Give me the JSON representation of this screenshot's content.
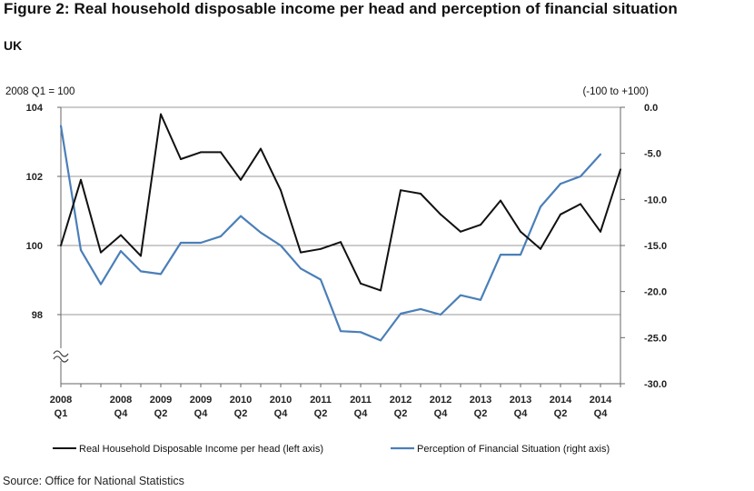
{
  "figure": {
    "title": "Figure 2: Real household disposable income per head and perception of financial situation",
    "subtitle": "UK",
    "source": "Source: Office for National Statistics"
  },
  "colors": {
    "income_line": "#111111",
    "perception_line": "#4a7fb8",
    "gridline": "#9a9a9a"
  },
  "chart_data": {
    "type": "line",
    "left_axis": {
      "unit_label": "2008 Q1 = 100",
      "ylim": [
        96,
        104
      ],
      "ticks": [
        98,
        100,
        102,
        104
      ],
      "tick_labels": [
        "98",
        "100",
        "102",
        "104"
      ],
      "break_mark": true
    },
    "right_axis": {
      "unit_label": "(-100 to +100)",
      "ylim": [
        -30,
        0
      ],
      "ticks": [
        0,
        -5,
        -10,
        -15,
        -20,
        -25,
        -30
      ],
      "tick_labels": [
        "0.0",
        "-5.0",
        "-10.0",
        "-15.0",
        "-20.0",
        "-25.0",
        "-30.0"
      ]
    },
    "x_labels": [
      [
        "2008",
        "Q1"
      ],
      [
        "2008",
        "Q4"
      ],
      [
        "2009",
        "Q2"
      ],
      [
        "2009",
        "Q4"
      ],
      [
        "2010",
        "Q2"
      ],
      [
        "2010",
        "Q4"
      ],
      [
        "2011",
        "Q2"
      ],
      [
        "2011",
        "Q4"
      ],
      [
        "2012",
        "Q2"
      ],
      [
        "2012",
        "Q4"
      ],
      [
        "2013",
        "Q2"
      ],
      [
        "2013",
        "Q4"
      ],
      [
        "2014",
        "Q2"
      ],
      [
        "2014",
        "Q4"
      ]
    ],
    "series": [
      {
        "name": "Real Household Disposable Income per head (left axis)",
        "axis": "left",
        "values": [
          100.0,
          101.9,
          99.8,
          100.3,
          99.7,
          103.8,
          102.5,
          102.7,
          102.7,
          101.9,
          102.8,
          101.6,
          99.8,
          99.9,
          100.1,
          98.9,
          98.7,
          101.6,
          101.5,
          100.9,
          100.4,
          100.6,
          101.3,
          100.4,
          99.9,
          100.9,
          101.2,
          100.4,
          102.2
        ]
      },
      {
        "name": "Perception of Financial Situation (right axis)",
        "axis": "right",
        "values": [
          -2.0,
          -15.5,
          -19.2,
          -15.6,
          -17.8,
          -18.1,
          -14.7,
          -14.7,
          -14.0,
          -11.8,
          -13.6,
          -15.0,
          -17.5,
          -18.7,
          -24.3,
          -24.4,
          -25.3,
          -22.4,
          -21.9,
          -22.5,
          -20.4,
          -20.9,
          -16.0,
          -16.0,
          -10.8,
          -8.3,
          -7.5,
          -5.1,
          null
        ]
      }
    ]
  }
}
